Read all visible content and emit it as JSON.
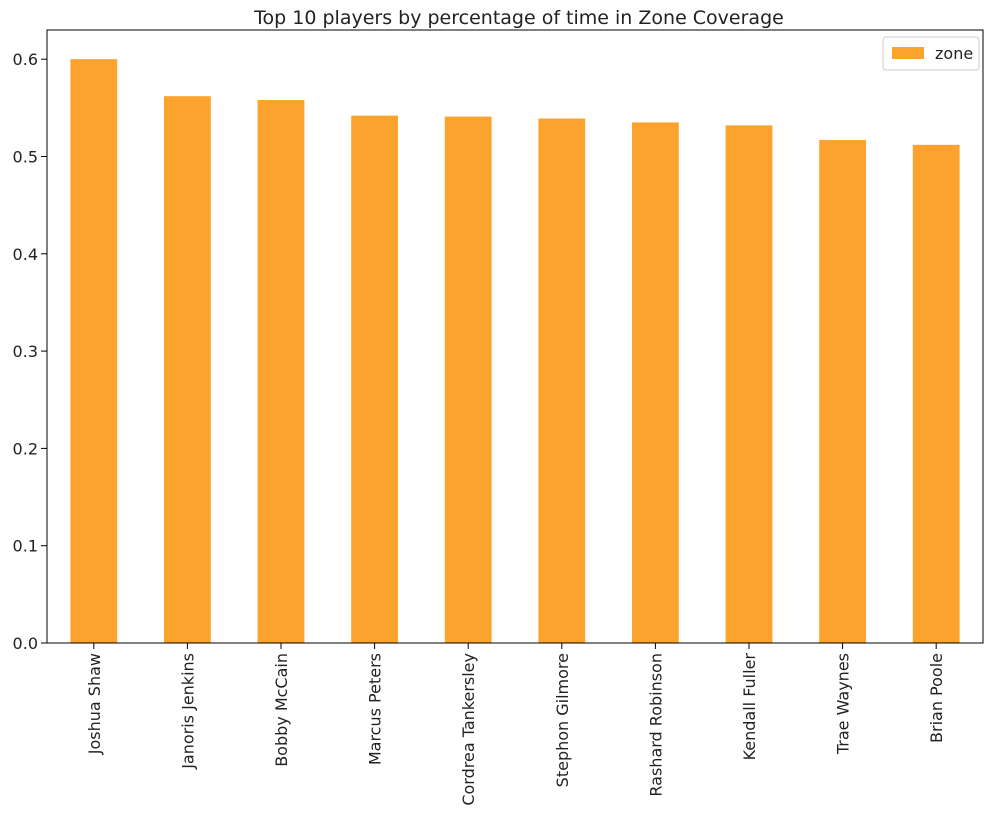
{
  "chart_data": {
    "type": "bar",
    "title": "Top 10 players by percentage of time in Zone Coverage",
    "xlabel": "",
    "ylabel": "",
    "categories": [
      "Joshua Shaw",
      "Janoris Jenkins",
      "Bobby McCain",
      "Marcus Peters",
      "Cordrea Tankersley",
      "Stephon Gilmore",
      "Rashard Robinson",
      "Kendall Fuller",
      "Trae Waynes",
      "Brian Poole"
    ],
    "series": [
      {
        "name": "zone",
        "color": "#fca32e",
        "values": [
          0.6,
          0.562,
          0.558,
          0.542,
          0.541,
          0.539,
          0.535,
          0.532,
          0.517,
          0.512
        ]
      }
    ],
    "ylim": [
      0,
      0.63
    ],
    "yticks": [
      0.0,
      0.1,
      0.2,
      0.3,
      0.4,
      0.5,
      0.6
    ],
    "ytick_labels": [
      "0.0",
      "0.1",
      "0.2",
      "0.3",
      "0.4",
      "0.5",
      "0.6"
    ],
    "grid": false,
    "legend": "top-right"
  }
}
